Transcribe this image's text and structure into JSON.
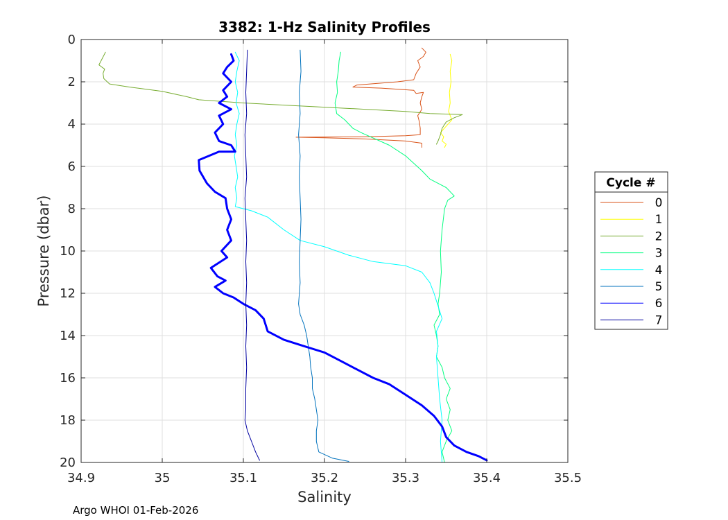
{
  "chart_data": {
    "type": "line",
    "title": "3382: 1-Hz Salinity Profiles",
    "xlabel": "Salinity",
    "ylabel": "Pressure (dbar)",
    "xlim": [
      34.9,
      35.5
    ],
    "ylim": [
      0,
      20
    ],
    "y_reversed": true,
    "grid": true,
    "xticks": [
      "34.9",
      "35",
      "35.1",
      "35.2",
      "35.3",
      "35.4",
      "35.5"
    ],
    "yticks": [
      "0",
      "2",
      "4",
      "6",
      "8",
      "10",
      "12",
      "14",
      "16",
      "18",
      "20"
    ],
    "legend": {
      "title": "Cycle #",
      "position": "right"
    },
    "series": [
      {
        "name": "0",
        "color": "#d95319",
        "width": 1,
        "points": [
          [
            35.32,
            0.4
          ],
          [
            35.325,
            0.6
          ],
          [
            35.322,
            0.8
          ],
          [
            35.315,
            1.0
          ],
          [
            35.318,
            1.3
          ],
          [
            35.313,
            1.6
          ],
          [
            35.31,
            1.9
          ],
          [
            35.29,
            2.0
          ],
          [
            35.24,
            2.15
          ],
          [
            35.235,
            2.25
          ],
          [
            35.27,
            2.3
          ],
          [
            35.31,
            2.4
          ],
          [
            35.313,
            2.55
          ],
          [
            35.322,
            2.5
          ],
          [
            35.32,
            2.7
          ],
          [
            35.318,
            3.0
          ],
          [
            35.32,
            3.3
          ],
          [
            35.315,
            3.6
          ],
          [
            35.317,
            3.9
          ],
          [
            35.318,
            4.2
          ],
          [
            35.318,
            4.5
          ],
          [
            35.3,
            4.55
          ],
          [
            35.25,
            4.6
          ],
          [
            35.165,
            4.62
          ],
          [
            35.2,
            4.65
          ],
          [
            35.25,
            4.7
          ],
          [
            35.3,
            4.8
          ],
          [
            35.32,
            4.9
          ],
          [
            35.32,
            5.1
          ]
        ]
      },
      {
        "name": "1",
        "color": "#ffff00",
        "width": 1,
        "points": [
          [
            35.355,
            0.7
          ],
          [
            35.357,
            1.0
          ],
          [
            35.355,
            1.5
          ],
          [
            35.356,
            2.0
          ],
          [
            35.354,
            2.5
          ],
          [
            35.355,
            3.0
          ],
          [
            35.353,
            3.4
          ],
          [
            35.357,
            3.8
          ],
          [
            35.35,
            4.1
          ],
          [
            35.343,
            4.4
          ],
          [
            35.347,
            4.6
          ],
          [
            35.345,
            4.8
          ],
          [
            35.35,
            4.95
          ],
          [
            35.348,
            5.1
          ]
        ]
      },
      {
        "name": "2",
        "color": "#77ac30",
        "width": 1,
        "points": [
          [
            34.93,
            0.6
          ],
          [
            34.926,
            0.9
          ],
          [
            34.922,
            1.2
          ],
          [
            34.929,
            1.4
          ],
          [
            34.927,
            1.6
          ],
          [
            34.928,
            1.85
          ],
          [
            34.935,
            2.1
          ],
          [
            34.96,
            2.25
          ],
          [
            35.0,
            2.45
          ],
          [
            35.03,
            2.7
          ],
          [
            35.045,
            2.85
          ],
          [
            35.1,
            3.0
          ],
          [
            35.15,
            3.1
          ],
          [
            35.2,
            3.2
          ],
          [
            35.25,
            3.3
          ],
          [
            35.3,
            3.4
          ],
          [
            35.33,
            3.5
          ],
          [
            35.37,
            3.55
          ],
          [
            35.36,
            3.7
          ],
          [
            35.35,
            3.9
          ],
          [
            35.345,
            4.2
          ],
          [
            35.343,
            4.5
          ],
          [
            35.34,
            4.8
          ],
          [
            35.338,
            4.95
          ]
        ]
      },
      {
        "name": "3",
        "color": "#00ff7f",
        "width": 1,
        "points": [
          [
            35.22,
            0.6
          ],
          [
            35.218,
            1.0
          ],
          [
            35.217,
            1.5
          ],
          [
            35.215,
            2.0
          ],
          [
            35.216,
            2.5
          ],
          [
            35.213,
            3.0
          ],
          [
            35.215,
            3.5
          ],
          [
            35.225,
            3.8
          ],
          [
            35.235,
            4.2
          ],
          [
            35.245,
            4.4
          ],
          [
            35.28,
            5.0
          ],
          [
            35.3,
            5.5
          ],
          [
            35.32,
            6.2
          ],
          [
            35.33,
            6.6
          ],
          [
            35.35,
            7.0
          ],
          [
            35.36,
            7.4
          ],
          [
            35.352,
            7.6
          ],
          [
            35.348,
            8.0
          ],
          [
            35.345,
            9.0
          ],
          [
            35.343,
            10.0
          ],
          [
            35.344,
            11.0
          ],
          [
            35.342,
            12.0
          ],
          [
            35.34,
            12.5
          ],
          [
            35.342,
            13.0
          ],
          [
            35.335,
            13.5
          ],
          [
            35.338,
            14.0
          ],
          [
            35.34,
            14.5
          ],
          [
            35.338,
            15.0
          ],
          [
            35.345,
            15.5
          ],
          [
            35.348,
            16.0
          ],
          [
            35.355,
            16.5
          ],
          [
            35.35,
            17.0
          ],
          [
            35.355,
            17.5
          ],
          [
            35.352,
            18.0
          ],
          [
            35.357,
            18.5
          ],
          [
            35.35,
            19.0
          ],
          [
            35.345,
            19.5
          ],
          [
            35.348,
            20.0
          ]
        ]
      },
      {
        "name": "4",
        "color": "#00ffff",
        "width": 1,
        "points": [
          [
            35.09,
            0.6
          ],
          [
            35.095,
            1.0
          ],
          [
            35.092,
            1.5
          ],
          [
            35.09,
            2.0
          ],
          [
            35.093,
            2.5
          ],
          [
            35.091,
            3.0
          ],
          [
            35.095,
            3.5
          ],
          [
            35.092,
            4.0
          ],
          [
            35.09,
            4.5
          ],
          [
            35.092,
            5.0
          ],
          [
            35.089,
            5.5
          ],
          [
            35.091,
            6.0
          ],
          [
            35.093,
            6.5
          ],
          [
            35.09,
            7.0
          ],
          [
            35.092,
            7.5
          ],
          [
            35.09,
            7.9
          ],
          [
            35.11,
            8.1
          ],
          [
            35.13,
            8.4
          ],
          [
            35.15,
            9.0
          ],
          [
            35.17,
            9.5
          ],
          [
            35.2,
            9.8
          ],
          [
            35.23,
            10.2
          ],
          [
            35.26,
            10.5
          ],
          [
            35.3,
            10.7
          ],
          [
            35.32,
            11.0
          ],
          [
            35.33,
            11.5
          ],
          [
            35.335,
            12.0
          ],
          [
            35.34,
            12.6
          ],
          [
            35.345,
            13.2
          ],
          [
            35.338,
            13.8
          ],
          [
            35.34,
            14.5
          ],
          [
            35.338,
            15.0
          ],
          [
            35.34,
            16.0
          ],
          [
            35.342,
            17.0
          ],
          [
            35.345,
            18.0
          ],
          [
            35.343,
            19.0
          ],
          [
            35.345,
            20.0
          ]
        ]
      },
      {
        "name": "5",
        "color": "#0072bd",
        "width": 1,
        "points": [
          [
            35.17,
            0.5
          ],
          [
            35.171,
            1.5
          ],
          [
            35.169,
            2.5
          ],
          [
            35.17,
            3.5
          ],
          [
            35.168,
            4.5
          ],
          [
            35.17,
            5.5
          ],
          [
            35.169,
            6.5
          ],
          [
            35.17,
            7.5
          ],
          [
            35.171,
            8.5
          ],
          [
            35.17,
            9.5
          ],
          [
            35.169,
            10.5
          ],
          [
            35.17,
            11.5
          ],
          [
            35.168,
            12.5
          ],
          [
            35.17,
            13.0
          ],
          [
            35.175,
            13.5
          ],
          [
            35.178,
            14.0
          ],
          [
            35.18,
            14.5
          ],
          [
            35.182,
            15.0
          ],
          [
            35.183,
            15.5
          ],
          [
            35.185,
            16.0
          ],
          [
            35.185,
            16.5
          ],
          [
            35.188,
            17.0
          ],
          [
            35.19,
            17.5
          ],
          [
            35.192,
            18.0
          ],
          [
            35.19,
            18.5
          ],
          [
            35.19,
            19.0
          ],
          [
            35.193,
            19.5
          ],
          [
            35.21,
            19.8
          ],
          [
            35.23,
            19.95
          ]
        ]
      },
      {
        "name": "6",
        "color": "#0000ff",
        "width": 3,
        "points": [
          [
            35.085,
            0.7
          ],
          [
            35.088,
            1.0
          ],
          [
            35.08,
            1.3
          ],
          [
            35.075,
            1.6
          ],
          [
            35.085,
            2.0
          ],
          [
            35.075,
            2.4
          ],
          [
            35.08,
            2.7
          ],
          [
            35.07,
            3.0
          ],
          [
            35.085,
            3.3
          ],
          [
            35.07,
            3.6
          ],
          [
            35.075,
            4.0
          ],
          [
            35.065,
            4.4
          ],
          [
            35.07,
            4.8
          ],
          [
            35.085,
            5.0
          ],
          [
            35.09,
            5.3
          ],
          [
            35.07,
            5.3
          ],
          [
            35.045,
            5.7
          ],
          [
            35.046,
            6.2
          ],
          [
            35.055,
            6.8
          ],
          [
            35.065,
            7.2
          ],
          [
            35.078,
            7.5
          ],
          [
            35.08,
            8.0
          ],
          [
            35.085,
            8.5
          ],
          [
            35.08,
            9.0
          ],
          [
            35.085,
            9.5
          ],
          [
            35.073,
            10.0
          ],
          [
            35.08,
            10.3
          ],
          [
            35.06,
            10.8
          ],
          [
            35.068,
            11.2
          ],
          [
            35.078,
            11.4
          ],
          [
            35.065,
            11.7
          ],
          [
            35.075,
            12.0
          ],
          [
            35.088,
            12.2
          ],
          [
            35.1,
            12.5
          ],
          [
            35.115,
            12.8
          ],
          [
            35.125,
            13.2
          ],
          [
            35.13,
            13.8
          ],
          [
            35.15,
            14.2
          ],
          [
            35.175,
            14.5
          ],
          [
            35.2,
            14.8
          ],
          [
            35.22,
            15.2
          ],
          [
            35.24,
            15.6
          ],
          [
            35.26,
            16.0
          ],
          [
            35.28,
            16.3
          ],
          [
            35.3,
            16.8
          ],
          [
            35.32,
            17.3
          ],
          [
            35.335,
            17.8
          ],
          [
            35.345,
            18.3
          ],
          [
            35.35,
            18.8
          ],
          [
            35.36,
            19.2
          ],
          [
            35.375,
            19.5
          ],
          [
            35.39,
            19.7
          ],
          [
            35.4,
            19.9
          ]
        ]
      },
      {
        "name": "7",
        "color": "#0000a0",
        "width": 1,
        "points": [
          [
            35.105,
            0.5
          ],
          [
            35.104,
            1.5
          ],
          [
            35.103,
            2.5
          ],
          [
            35.104,
            3.5
          ],
          [
            35.102,
            4.5
          ],
          [
            35.103,
            5.5
          ],
          [
            35.104,
            6.5
          ],
          [
            35.102,
            7.5
          ],
          [
            35.103,
            8.5
          ],
          [
            35.104,
            9.5
          ],
          [
            35.103,
            10.5
          ],
          [
            35.104,
            11.5
          ],
          [
            35.103,
            12.5
          ],
          [
            35.104,
            13.5
          ],
          [
            35.103,
            14.5
          ],
          [
            35.104,
            15.5
          ],
          [
            35.103,
            16.5
          ],
          [
            35.103,
            17.5
          ],
          [
            35.102,
            18.0
          ],
          [
            35.105,
            18.5
          ],
          [
            35.11,
            19.0
          ],
          [
            35.115,
            19.5
          ],
          [
            35.12,
            19.9
          ]
        ]
      }
    ]
  },
  "footer": {
    "text": "Argo WHOI 01-Feb-2026"
  }
}
